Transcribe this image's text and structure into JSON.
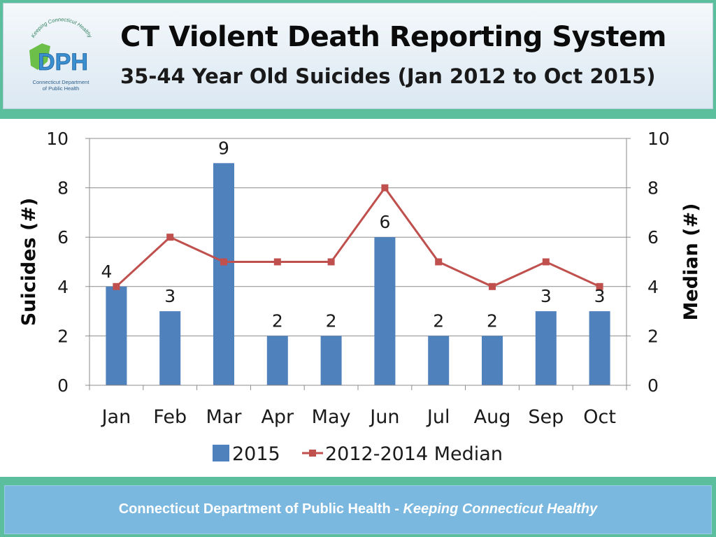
{
  "header": {
    "title": "CT Violent Death Reporting System",
    "subtitle": "35-44 Year Old Suicides (Jan 2012 to Oct 2015)"
  },
  "logo": {
    "text": "DPH",
    "arc_text": "Keeping Connecticut Healthy",
    "caption_line1": "Connecticut Department",
    "caption_line2": "of Public Health"
  },
  "chart_data": {
    "type": "bar",
    "categories": [
      "Jan",
      "Feb",
      "Mar",
      "Apr",
      "May",
      "Jun",
      "Jul",
      "Aug",
      "Sep",
      "Oct"
    ],
    "series": [
      {
        "name": "2015",
        "type": "bar",
        "axis": "left",
        "color": "#4f81bd",
        "values": [
          4,
          3,
          9,
          2,
          2,
          6,
          2,
          2,
          3,
          3
        ]
      },
      {
        "name": "2012-2014 Median",
        "type": "line",
        "axis": "right",
        "color": "#c0504d",
        "values": [
          4,
          6,
          5,
          5,
          5,
          8,
          5,
          4,
          5,
          4
        ]
      }
    ],
    "ylabel": "Suicides (#)",
    "y2label": "Median (#)",
    "ylim": [
      0,
      10
    ],
    "y2lim": [
      0,
      10
    ],
    "yticks": [
      0,
      2,
      4,
      6,
      8,
      10
    ],
    "grid": true,
    "data_labels": "bars",
    "legend": "bottom"
  },
  "footer": {
    "org": "Connecticut Department of Public Health",
    "separator": " - ",
    "tagline": "Keeping Connecticut Healthy"
  }
}
